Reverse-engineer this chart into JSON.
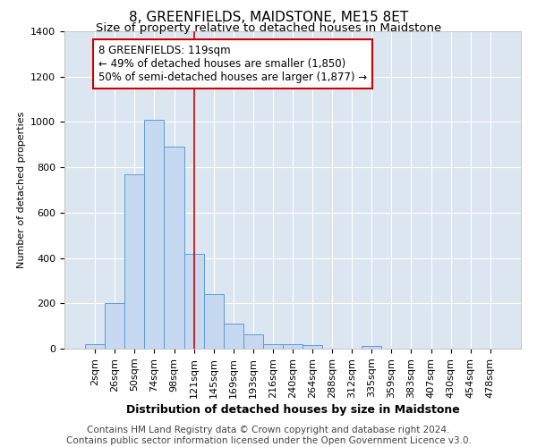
{
  "title": "8, GREENFIELDS, MAIDSTONE, ME15 8ET",
  "subtitle": "Size of property relative to detached houses in Maidstone",
  "xlabel": "Distribution of detached houses by size in Maidstone",
  "ylabel": "Number of detached properties",
  "categories": [
    "2sqm",
    "26sqm",
    "50sqm",
    "74sqm",
    "98sqm",
    "121sqm",
    "145sqm",
    "169sqm",
    "193sqm",
    "216sqm",
    "240sqm",
    "264sqm",
    "288sqm",
    "312sqm",
    "335sqm",
    "359sqm",
    "383sqm",
    "407sqm",
    "430sqm",
    "454sqm",
    "478sqm"
  ],
  "bar_values": [
    20,
    200,
    770,
    1010,
    890,
    420,
    240,
    110,
    65,
    20,
    20,
    15,
    0,
    0,
    10,
    0,
    0,
    0,
    0,
    0,
    0
  ],
  "bar_color": "#c6d9f0",
  "bar_edge_color": "#5b9bd5",
  "vline_color": "#cc0000",
  "vline_pos": 5.0,
  "annot_line1": "8 GREENFIELDS: 119sqm",
  "annot_line2": "← 49% of detached houses are smaller (1,850)",
  "annot_line3": "50% of semi-detached houses are larger (1,877) →",
  "ylim": [
    0,
    1400
  ],
  "yticks": [
    0,
    200,
    400,
    600,
    800,
    1000,
    1200,
    1400
  ],
  "bg_color": "#dce6f1",
  "footer_line1": "Contains HM Land Registry data © Crown copyright and database right 2024.",
  "footer_line2": "Contains public sector information licensed under the Open Government Licence v3.0.",
  "title_fontsize": 11,
  "subtitle_fontsize": 9.5,
  "axis_fontsize": 8,
  "tick_fontsize": 8,
  "xlabel_fontsize": 9,
  "footer_fontsize": 7.5
}
